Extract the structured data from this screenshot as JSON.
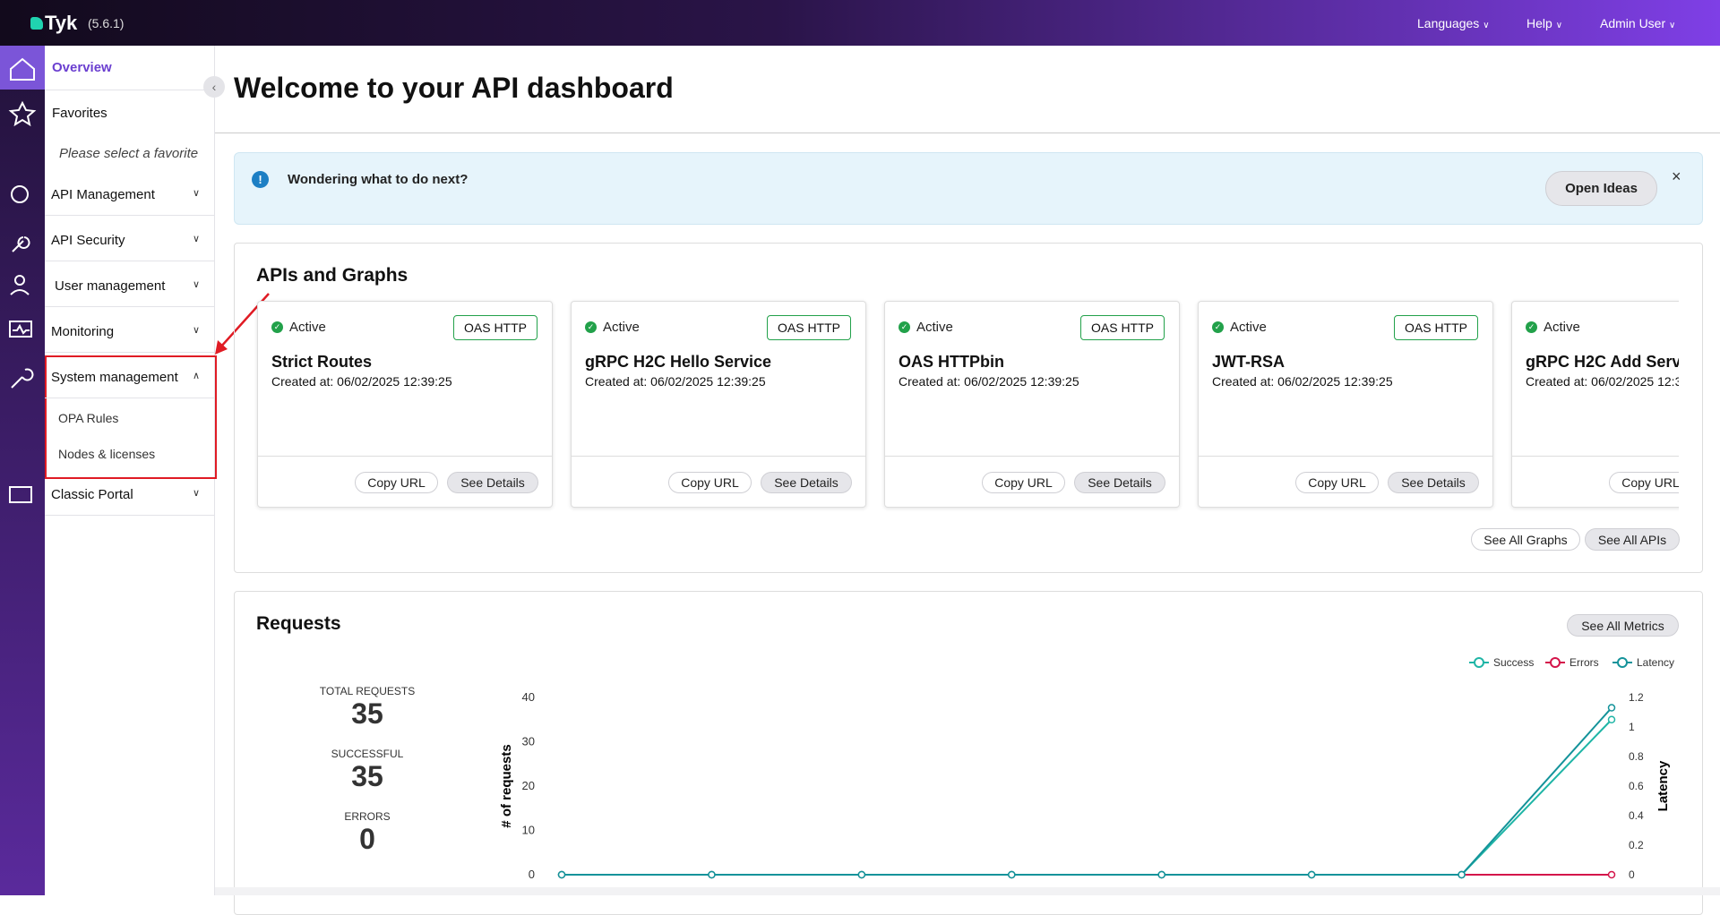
{
  "header": {
    "logo": "Tyk",
    "version": "(5.6.1)",
    "menu": [
      "Languages",
      "Help",
      "Admin User"
    ]
  },
  "sidebar": {
    "overview": "Overview",
    "favorites": "Favorites",
    "favorites_empty": "Please select a favorite",
    "sections": [
      "API Management",
      "API Security",
      "User management",
      "Monitoring",
      "System management",
      "Classic Portal"
    ],
    "system_items": [
      "OPA Rules",
      "Nodes & licenses"
    ]
  },
  "main": {
    "title": "Welcome to your API dashboard",
    "banner": {
      "text": "Wondering what to do next?",
      "button": "Open Ideas"
    },
    "apis": {
      "title": "APIs and Graphs",
      "cards": [
        {
          "status": "Active",
          "type": "OAS HTTP",
          "name": "Strict Routes",
          "created": "Created at: 06/02/2025 12:39:25",
          "copy": "Copy URL",
          "details": "See Details"
        },
        {
          "status": "Active",
          "type": "OAS HTTP",
          "name": "gRPC H2C Hello Service",
          "created": "Created at: 06/02/2025 12:39:25",
          "copy": "Copy URL",
          "details": "See Details"
        },
        {
          "status": "Active",
          "type": "OAS HTTP",
          "name": "OAS HTTPbin",
          "created": "Created at: 06/02/2025 12:39:25",
          "copy": "Copy URL",
          "details": "See Details"
        },
        {
          "status": "Active",
          "type": "OAS HTTP",
          "name": "JWT-RSA",
          "created": "Created at: 06/02/2025 12:39:25",
          "copy": "Copy URL",
          "details": "See Details"
        },
        {
          "status": "Active",
          "name": "gRPC H2C Add Serv",
          "created": "Created at: 06/02/2025 12:3",
          "copy": "Copy URL"
        }
      ],
      "buttons": [
        "See All Graphs",
        "See All APIs"
      ]
    },
    "requests": {
      "title": "Requests",
      "button": "See All Metrics",
      "stats": [
        {
          "label": "TOTAL REQUESTS",
          "value": 35
        },
        {
          "label": "SUCCESSFUL",
          "value": 35
        },
        {
          "label": "ERRORS",
          "value": 0
        }
      ],
      "chart_data": {
        "type": "line",
        "ylabel": "# of requests",
        "y2label": "Latency",
        "ylim": [
          0,
          40
        ],
        "yticks": [
          0,
          10,
          20,
          30,
          40
        ],
        "y2lim": [
          0,
          1.2
        ],
        "y2ticks": [
          0,
          0.2,
          0.4,
          0.6,
          0.8,
          1,
          1.2
        ],
        "series": [
          {
            "name": "Success",
            "color": "#1fb5a6",
            "values": [
              0,
              0,
              0,
              0,
              0,
              0,
              0,
              35
            ]
          },
          {
            "name": "Errors",
            "color": "#d4144a",
            "values": [
              0,
              0,
              0,
              0,
              0,
              0,
              0,
              0
            ]
          },
          {
            "name": "Latency",
            "color": "#14939a",
            "axis": "y2",
            "values": [
              0,
              0,
              0,
              0,
              0,
              0,
              0,
              1.13
            ]
          }
        ]
      }
    }
  }
}
